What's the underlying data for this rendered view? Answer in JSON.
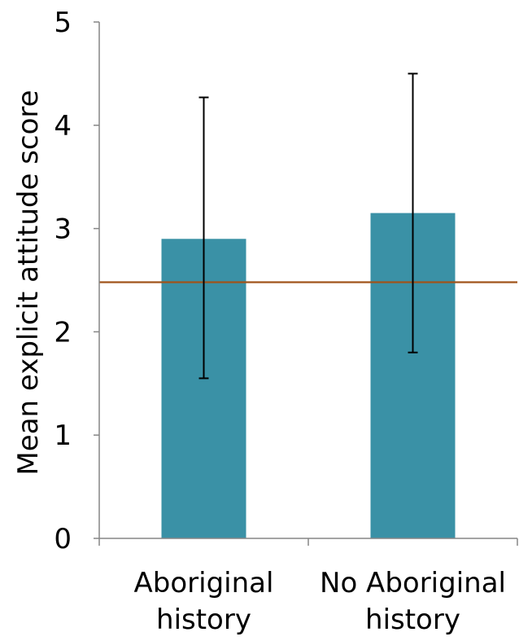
{
  "chart_data": {
    "type": "bar",
    "title": "",
    "xlabel": "",
    "ylabel": "Mean explicit attitude score",
    "ylim": [
      0,
      5
    ],
    "yticks": [
      0,
      1,
      2,
      3,
      4,
      5
    ],
    "categories": [
      "Aboriginal history",
      "No Aboriginal history"
    ],
    "category_lines": [
      [
        "Aboriginal",
        "history"
      ],
      [
        "No Aboriginal",
        "history"
      ]
    ],
    "values": [
      2.9,
      3.15
    ],
    "error_low": [
      1.55,
      1.8
    ],
    "error_high": [
      4.27,
      4.5
    ],
    "reference_line": 2.48,
    "grid": false,
    "legend": "none",
    "colors": {
      "bar": "#3A91A6",
      "reference": "#A0541A",
      "error": "#000000",
      "axis": "#868686"
    }
  }
}
